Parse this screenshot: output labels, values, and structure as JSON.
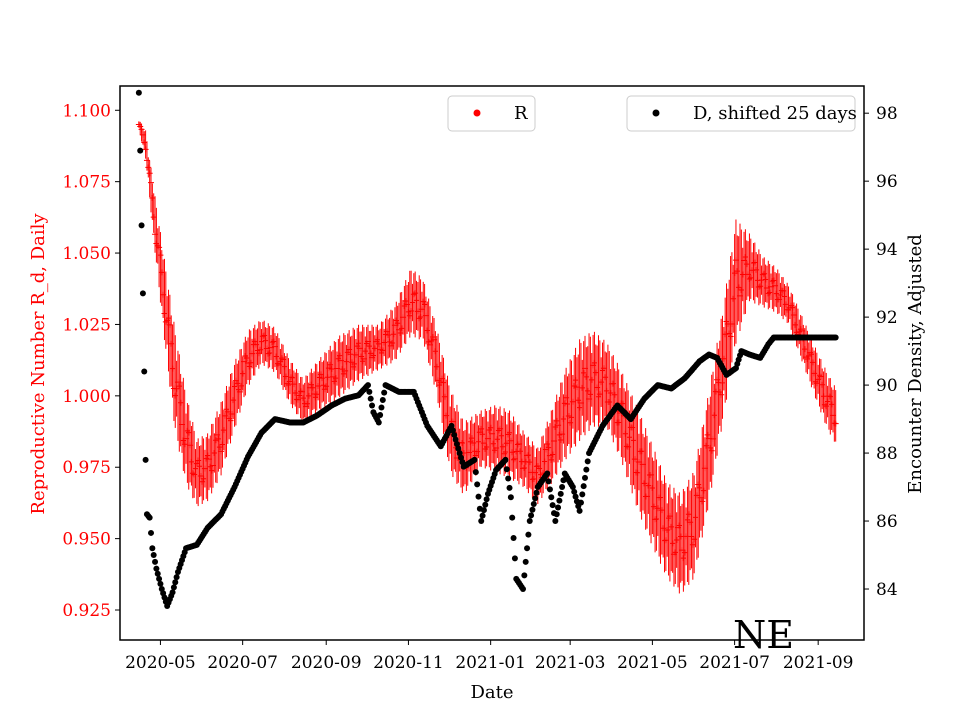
{
  "chart_data": {
    "type": "scatter",
    "title": "",
    "xlabel": "Date",
    "ylabel_left": "Reproductive Number R_d, Daily",
    "ylabel_right": "Encounter Density, Adjusted",
    "annotation": "NE",
    "x_range": [
      "2020-04-01",
      "2021-10-05"
    ],
    "x_tick_labels": [
      "2020-05",
      "2020-07",
      "2020-09",
      "2020-11",
      "2021-01",
      "2021-03",
      "2021-05",
      "2021-07",
      "2021-09"
    ],
    "x_tick_dates": [
      "2020-05-01",
      "2020-07-01",
      "2020-09-01",
      "2020-11-01",
      "2021-01-01",
      "2021-03-01",
      "2021-05-01",
      "2021-07-01",
      "2021-09-01"
    ],
    "ylim_left": [
      0.9145,
      1.1085
    ],
    "yticks_left": [
      "0.925",
      "0.950",
      "0.975",
      "1.000",
      "1.025",
      "1.050",
      "1.075",
      "1.100"
    ],
    "ylim_right": [
      82.5,
      98.8
    ],
    "yticks_right": [
      "84",
      "86",
      "88",
      "90",
      "92",
      "94",
      "96",
      "98"
    ],
    "colors": {
      "R": "#ff0000",
      "D": "#000000",
      "axis_left": "#ff0000"
    },
    "legend": [
      {
        "label": "R",
        "placement": "top-center",
        "color": "#ff0000"
      },
      {
        "label": "D, shifted 25 days",
        "placement": "top-right",
        "color": "#000000"
      }
    ],
    "series": [
      {
        "name": "R",
        "axis": "left",
        "marker": "+",
        "color": "#ff0000",
        "start_date": "2020-04-15",
        "keyframes": [
          [
            "2020-04-15",
            1.095,
            0.002
          ],
          [
            "2020-04-20",
            1.088,
            0.005
          ],
          [
            "2020-04-27",
            1.06,
            0.01
          ],
          [
            "2020-05-05",
            1.03,
            0.015
          ],
          [
            "2020-05-12",
            1.005,
            0.018
          ],
          [
            "2020-05-20",
            0.985,
            0.016
          ],
          [
            "2020-05-28",
            0.973,
            0.012
          ],
          [
            "2020-06-05",
            0.975,
            0.012
          ],
          [
            "2020-06-15",
            0.985,
            0.013
          ],
          [
            "2020-06-25",
            1.0,
            0.012
          ],
          [
            "2020-07-05",
            1.013,
            0.01
          ],
          [
            "2020-07-15",
            1.019,
            0.008
          ],
          [
            "2020-07-25",
            1.016,
            0.008
          ],
          [
            "2020-08-05",
            1.005,
            0.008
          ],
          [
            "2020-08-15",
            0.998,
            0.008
          ],
          [
            "2020-08-25",
            1.003,
            0.009
          ],
          [
            "2020-09-10",
            1.01,
            0.011
          ],
          [
            "2020-09-25",
            1.015,
            0.01
          ],
          [
            "2020-10-10",
            1.017,
            0.008
          ],
          [
            "2020-10-22",
            1.022,
            0.01
          ],
          [
            "2020-11-03",
            1.033,
            0.012
          ],
          [
            "2020-11-12",
            1.03,
            0.011
          ],
          [
            "2020-11-22",
            1.012,
            0.012
          ],
          [
            "2020-12-02",
            0.988,
            0.015
          ],
          [
            "2020-12-12",
            0.978,
            0.013
          ],
          [
            "2020-12-25",
            0.985,
            0.01
          ],
          [
            "2021-01-05",
            0.985,
            0.012
          ],
          [
            "2021-01-15",
            0.983,
            0.012
          ],
          [
            "2021-01-25",
            0.978,
            0.01
          ],
          [
            "2021-02-05",
            0.972,
            0.01
          ],
          [
            "2021-02-15",
            0.982,
            0.013
          ],
          [
            "2021-02-25",
            0.993,
            0.016
          ],
          [
            "2021-03-08",
            1.002,
            0.018
          ],
          [
            "2021-03-18",
            1.006,
            0.017
          ],
          [
            "2021-03-28",
            1.004,
            0.015
          ],
          [
            "2021-04-08",
            0.993,
            0.016
          ],
          [
            "2021-04-20",
            0.978,
            0.018
          ],
          [
            "2021-05-01",
            0.965,
            0.018
          ],
          [
            "2021-05-12",
            0.953,
            0.017
          ],
          [
            "2021-05-22",
            0.948,
            0.018
          ],
          [
            "2021-06-01",
            0.955,
            0.019
          ],
          [
            "2021-06-12",
            0.982,
            0.02
          ],
          [
            "2021-06-22",
            1.01,
            0.02
          ],
          [
            "2021-07-02",
            1.04,
            0.022
          ],
          [
            "2021-07-12",
            1.045,
            0.012
          ],
          [
            "2021-07-22",
            1.04,
            0.009
          ],
          [
            "2021-08-01",
            1.037,
            0.008
          ],
          [
            "2021-08-10",
            1.032,
            0.007
          ],
          [
            "2021-08-20",
            1.02,
            0.008
          ],
          [
            "2021-08-30",
            1.008,
            0.009
          ],
          [
            "2021-09-08",
            0.998,
            0.01
          ],
          [
            "2021-09-14",
            0.993,
            0.01
          ]
        ]
      },
      {
        "name": "D, shifted 25 days",
        "axis": "right",
        "marker": "o",
        "color": "#000000",
        "keyframes": [
          [
            "2020-04-15",
            98.6
          ],
          [
            "2020-04-16",
            96.9
          ],
          [
            "2020-04-17",
            94.7
          ],
          [
            "2020-04-18",
            92.7
          ],
          [
            "2020-04-19",
            90.4
          ],
          [
            "2020-04-20",
            87.8
          ],
          [
            "2020-04-21",
            86.2
          ],
          [
            "2020-04-23",
            86.1
          ],
          [
            "2020-04-25",
            85.2
          ],
          [
            "2020-04-28",
            84.6
          ],
          [
            "2020-05-02",
            84.0
          ],
          [
            "2020-05-06",
            83.5
          ],
          [
            "2020-05-10",
            83.9
          ],
          [
            "2020-05-14",
            84.5
          ],
          [
            "2020-05-20",
            85.2
          ],
          [
            "2020-05-28",
            85.3
          ],
          [
            "2020-06-05",
            85.8
          ],
          [
            "2020-06-15",
            86.2
          ],
          [
            "2020-06-25",
            87.0
          ],
          [
            "2020-07-05",
            87.9
          ],
          [
            "2020-07-15",
            88.6
          ],
          [
            "2020-07-25",
            89.0
          ],
          [
            "2020-08-05",
            88.9
          ],
          [
            "2020-08-15",
            88.9
          ],
          [
            "2020-08-25",
            89.1
          ],
          [
            "2020-09-05",
            89.4
          ],
          [
            "2020-09-15",
            89.6
          ],
          [
            "2020-09-25",
            89.7
          ],
          [
            "2020-10-02",
            90.0
          ],
          [
            "2020-10-06",
            89.2
          ],
          [
            "2020-10-10",
            88.9
          ],
          [
            "2020-10-15",
            90.0
          ],
          [
            "2020-10-25",
            89.8
          ],
          [
            "2020-11-05",
            89.8
          ],
          [
            "2020-11-15",
            88.8
          ],
          [
            "2020-11-25",
            88.2
          ],
          [
            "2020-12-03",
            88.8
          ],
          [
            "2020-12-12",
            87.6
          ],
          [
            "2020-12-20",
            87.8
          ],
          [
            "2020-12-25",
            86.0
          ],
          [
            "2020-12-30",
            86.8
          ],
          [
            "2021-01-05",
            87.5
          ],
          [
            "2021-01-12",
            87.8
          ],
          [
            "2021-01-16",
            86.7
          ],
          [
            "2021-01-20",
            84.3
          ],
          [
            "2021-01-25",
            84.0
          ],
          [
            "2021-01-30",
            86.0
          ],
          [
            "2021-02-05",
            87.0
          ],
          [
            "2021-02-12",
            87.4
          ],
          [
            "2021-02-18",
            86.0
          ],
          [
            "2021-02-25",
            87.4
          ],
          [
            "2021-03-03",
            87.0
          ],
          [
            "2021-03-08",
            86.3
          ],
          [
            "2021-03-15",
            88.0
          ],
          [
            "2021-03-25",
            88.8
          ],
          [
            "2021-04-05",
            89.4
          ],
          [
            "2021-04-15",
            89.0
          ],
          [
            "2021-04-25",
            89.6
          ],
          [
            "2021-05-05",
            90.0
          ],
          [
            "2021-05-15",
            89.9
          ],
          [
            "2021-05-25",
            90.2
          ],
          [
            "2021-06-05",
            90.7
          ],
          [
            "2021-06-12",
            90.9
          ],
          [
            "2021-06-18",
            90.8
          ],
          [
            "2021-06-25",
            90.3
          ],
          [
            "2021-07-02",
            90.5
          ],
          [
            "2021-07-06",
            91.0
          ],
          [
            "2021-07-12",
            90.9
          ],
          [
            "2021-07-20",
            90.8
          ],
          [
            "2021-07-26",
            91.2
          ],
          [
            "2021-07-30",
            91.4
          ],
          [
            "2021-09-14",
            91.4
          ]
        ]
      }
    ]
  }
}
